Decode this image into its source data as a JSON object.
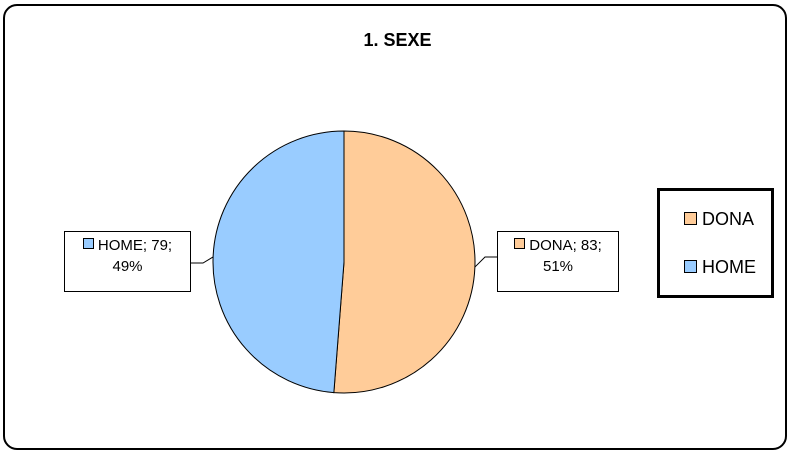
{
  "chart_data": {
    "type": "pie",
    "title": "1. SEXE",
    "slices": [
      {
        "label": "DONA",
        "value": 83,
        "percent": "51%",
        "color": "#FFCC99",
        "data_label_line1": "DONA; 83;",
        "data_label_line2": "51%"
      },
      {
        "label": "HOME",
        "value": 79,
        "percent": "49%",
        "color": "#99CCFF",
        "data_label_line1": "HOME; 79;",
        "data_label_line2": "49%"
      }
    ],
    "legend": {
      "position": "right",
      "entries": [
        "DONA",
        "HOME"
      ]
    }
  }
}
